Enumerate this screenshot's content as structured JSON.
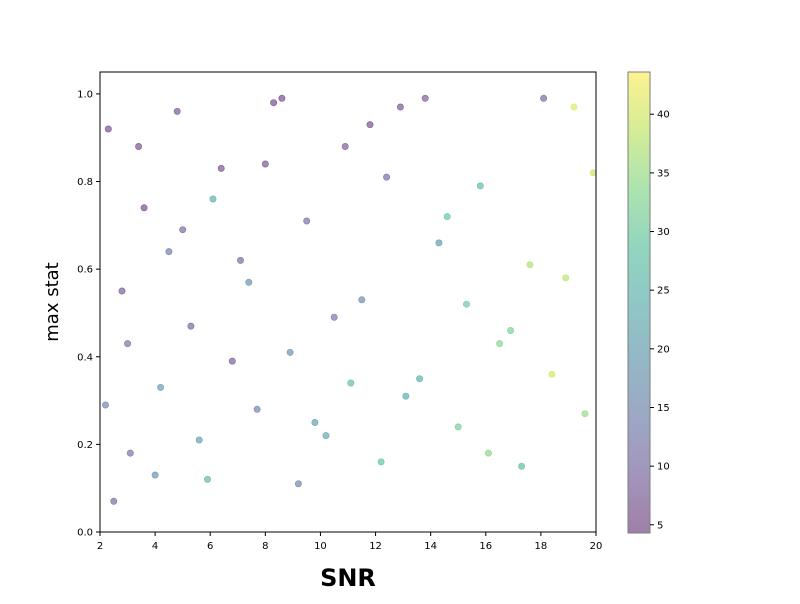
{
  "chart_data": {
    "type": "scatter",
    "title": "",
    "xlabel": "SNR",
    "ylabel": "max stat",
    "xlim": [
      2,
      20
    ],
    "ylim": [
      0,
      1.05
    ],
    "xticks": [
      "2",
      "4",
      "6",
      "8",
      "10",
      "12",
      "14",
      "16",
      "18",
      "20"
    ],
    "yticks": [
      "0.0",
      "0.2",
      "0.4",
      "0.6",
      "0.8",
      "1.0"
    ],
    "grid": false,
    "colorbar": {
      "colormap": "viridis",
      "range": [
        4.3,
        43.6
      ],
      "ticks": [
        "5",
        "10",
        "15",
        "20",
        "25",
        "30",
        "35",
        "40"
      ]
    },
    "marker_alpha": 0.5,
    "series": [
      {
        "x": [
          2.3,
          2.8,
          3.1,
          3.6,
          4.2,
          4.8,
          5.3,
          5.9,
          6.4,
          7.1,
          7.7,
          8.3,
          8.9,
          9.5,
          10.2,
          10.9,
          11.5,
          12.2,
          12.9,
          13.6,
          14.3,
          15.0,
          15.8,
          16.5,
          17.3,
          18.1,
          18.9,
          19.6,
          2.5,
          3.4,
          4.5,
          5.6,
          6.8,
          8.0,
          9.2,
          10.5,
          11.8,
          13.1,
          14.6,
          16.1,
          17.6,
          19.2,
          3.0,
          5.0,
          7.4,
          9.8,
          12.4,
          15.3,
          18.4,
          2.2,
          4.0,
          6.1,
          8.6,
          11.1,
          13.8,
          16.9,
          19.9
        ],
        "y": [
          0.92,
          0.55,
          0.18,
          0.74,
          0.33,
          0.96,
          0.47,
          0.12,
          0.83,
          0.62,
          0.28,
          0.98,
          0.41,
          0.71,
          0.22,
          0.88,
          0.53,
          0.16,
          0.97,
          0.35,
          0.66,
          0.24,
          0.79,
          0.43,
          0.15,
          0.99,
          0.58,
          0.27,
          0.07,
          0.88,
          0.64,
          0.21,
          0.39,
          0.84,
          0.11,
          0.49,
          0.93,
          0.31,
          0.72,
          0.18,
          0.61,
          0.97,
          0.43,
          0.69,
          0.57,
          0.25,
          0.81,
          0.52,
          0.36,
          0.29,
          0.13,
          0.76,
          0.99,
          0.34,
          0.99,
          0.46,
          0.82
        ],
        "c": [
          6,
          8,
          12,
          5,
          20,
          7,
          9,
          25,
          6,
          10,
          14,
          5,
          18,
          11,
          22,
          8,
          16,
          28,
          7,
          24,
          19,
          31,
          26,
          33,
          27,
          9,
          38,
          35,
          10,
          6,
          13,
          21,
          8,
          7,
          15,
          12,
          6,
          23,
          29,
          34,
          37,
          41,
          11,
          9,
          17,
          20,
          10,
          30,
          40,
          15,
          18,
          24,
          5,
          27,
          8,
          32,
          39
        ]
      }
    ]
  }
}
